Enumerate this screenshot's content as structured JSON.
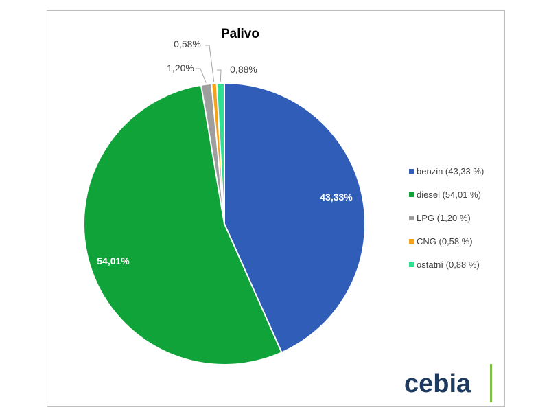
{
  "chart_data": {
    "type": "pie",
    "title": "Palivo",
    "slices": [
      {
        "name": "benzin",
        "value": 43.33,
        "label": "43,33%",
        "legend": "benzin (43,33 %)",
        "color": "#2f5db8",
        "label_inside": true
      },
      {
        "name": "diesel",
        "value": 54.01,
        "label": "54,01%",
        "legend": "diesel (54,01 %)",
        "color": "#10a33a",
        "label_inside": true
      },
      {
        "name": "LPG",
        "value": 1.2,
        "label": "1,20%",
        "legend": "LPG (1,20 %)",
        "color": "#9e9e9e",
        "label_inside": false
      },
      {
        "name": "CNG",
        "value": 0.58,
        "label": "0,58%",
        "legend": "CNG (0,58 %)",
        "color": "#f5a11c",
        "label_inside": false
      },
      {
        "name": "ostatní",
        "value": 0.88,
        "label": "0,88%",
        "legend": "ostatní (0,88 %)",
        "color": "#2ee08f",
        "label_inside": false
      }
    ],
    "legend_position": "right"
  },
  "brand": {
    "logo_text": "cebia",
    "accent_color": "#7ac143"
  }
}
